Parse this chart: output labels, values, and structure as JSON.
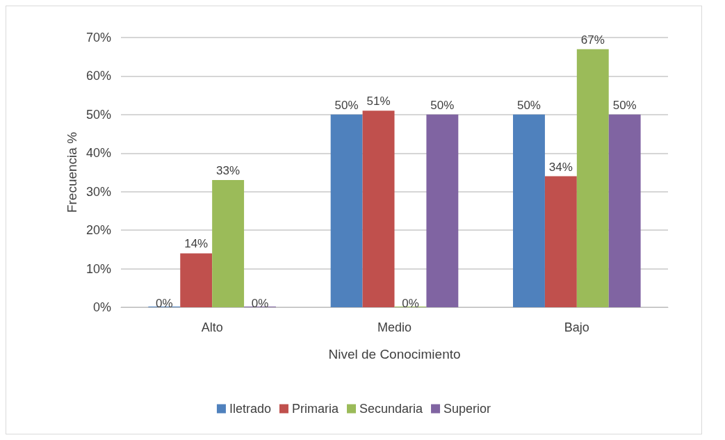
{
  "chart_data": {
    "type": "bar",
    "xlabel": "Nivel de Conocimiento",
    "ylabel": "Frecuencia %",
    "categories": [
      "Alto",
      "Medio",
      "Bajo"
    ],
    "series": [
      {
        "name": "Iletrado",
        "color": "#4f81bd",
        "values": [
          0,
          50,
          50
        ],
        "value_labels": [
          "0%",
          "50%",
          "50%"
        ]
      },
      {
        "name": "Primaria",
        "color": "#c0504d",
        "values": [
          14,
          51,
          34
        ],
        "value_labels": [
          "14%",
          "51%",
          "34%"
        ]
      },
      {
        "name": "Secundaria",
        "color": "#9bbb59",
        "values": [
          33,
          0,
          67
        ],
        "value_labels": [
          "33%",
          "0%",
          "67%"
        ]
      },
      {
        "name": "Superior",
        "color": "#8064a2",
        "values": [
          0,
          50,
          50
        ],
        "value_labels": [
          "0%",
          "50%",
          "50%"
        ]
      }
    ],
    "ylim": [
      0,
      70
    ],
    "yticks": [
      {
        "value": 0,
        "label": "0%"
      },
      {
        "value": 10,
        "label": "10%"
      },
      {
        "value": 20,
        "label": "20%"
      },
      {
        "value": 30,
        "label": "30%"
      },
      {
        "value": 40,
        "label": "40%"
      },
      {
        "value": 50,
        "label": "50%"
      },
      {
        "value": 60,
        "label": "60%"
      },
      {
        "value": 70,
        "label": "70%"
      }
    ],
    "grid": "y",
    "legend": "bottom"
  }
}
